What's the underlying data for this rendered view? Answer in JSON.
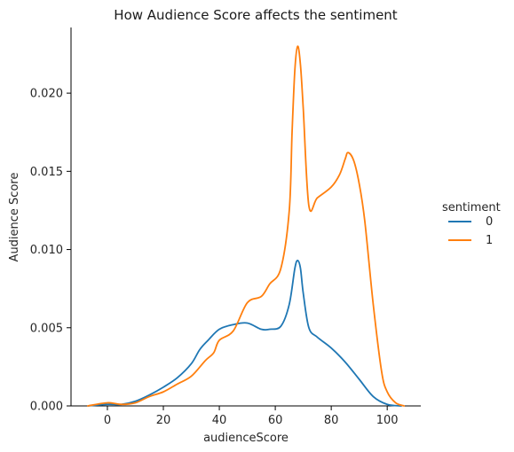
{
  "chart_data": {
    "type": "line",
    "title": "How Audience Score affects the sentiment",
    "xlabel": "audienceScore",
    "ylabel": "Audience Score",
    "xlim": [
      -13,
      112
    ],
    "ylim": [
      0,
      0.0242
    ],
    "xticks": [
      0,
      20,
      40,
      60,
      80,
      100
    ],
    "yticks": [
      0.0,
      0.005,
      0.01,
      0.015,
      0.02
    ],
    "ytick_labels": [
      "0.000",
      "0.005",
      "0.010",
      "0.015",
      "0.020"
    ],
    "grid": false,
    "legend": {
      "title": "sentiment",
      "placement": "right-outside"
    },
    "series": [
      {
        "name": "0",
        "color": "#1f77b4",
        "x": [
          -7,
          0,
          5,
          10,
          15,
          20,
          25,
          30,
          33,
          36,
          40,
          45,
          50,
          55,
          58,
          62,
          65,
          67,
          68,
          69,
          70,
          72,
          75,
          80,
          85,
          90,
          95,
          100,
          105
        ],
        "y": [
          0.0,
          0.0001,
          0.0001,
          0.0003,
          0.0007,
          0.0012,
          0.0018,
          0.0027,
          0.0036,
          0.0042,
          0.0049,
          0.0052,
          0.0053,
          0.0049,
          0.0049,
          0.0051,
          0.0065,
          0.0088,
          0.0093,
          0.0088,
          0.0072,
          0.005,
          0.0044,
          0.0037,
          0.0028,
          0.0017,
          0.0006,
          0.0001,
          0.0
        ]
      },
      {
        "name": "1",
        "color": "#ff7f0e",
        "x": [
          -7,
          0,
          5,
          10,
          15,
          20,
          25,
          30,
          35,
          38,
          40,
          45,
          50,
          55,
          58,
          62,
          65,
          66,
          67,
          68,
          69,
          70,
          72,
          75,
          80,
          83,
          85,
          86,
          88,
          90,
          92,
          95,
          98,
          100,
          103,
          106
        ],
        "y": [
          0.0,
          0.0002,
          0.0001,
          0.0002,
          0.0006,
          0.0009,
          0.0014,
          0.0019,
          0.0029,
          0.0034,
          0.0042,
          0.0048,
          0.0066,
          0.007,
          0.0078,
          0.0088,
          0.0125,
          0.0175,
          0.0215,
          0.023,
          0.0218,
          0.019,
          0.0128,
          0.0133,
          0.014,
          0.0148,
          0.0158,
          0.0162,
          0.0157,
          0.0142,
          0.0118,
          0.0065,
          0.0022,
          0.0009,
          0.0002,
          0.0
        ]
      }
    ]
  }
}
